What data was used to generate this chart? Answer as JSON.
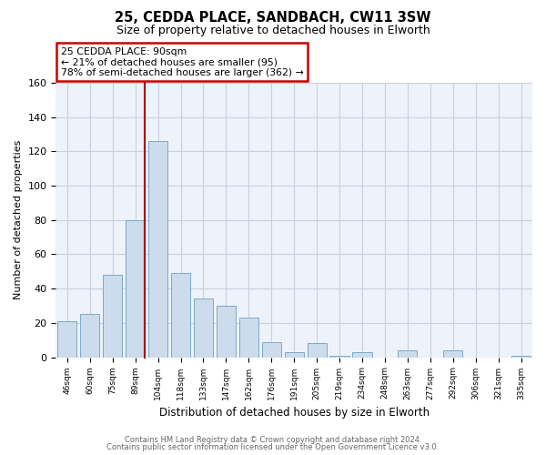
{
  "title": "25, CEDDA PLACE, SANDBACH, CW11 3SW",
  "subtitle": "Size of property relative to detached houses in Elworth",
  "xlabel": "Distribution of detached houses by size in Elworth",
  "ylabel": "Number of detached properties",
  "categories": [
    "46sqm",
    "60sqm",
    "75sqm",
    "89sqm",
    "104sqm",
    "118sqm",
    "133sqm",
    "147sqm",
    "162sqm",
    "176sqm",
    "191sqm",
    "205sqm",
    "219sqm",
    "234sqm",
    "248sqm",
    "263sqm",
    "277sqm",
    "292sqm",
    "306sqm",
    "321sqm",
    "335sqm"
  ],
  "values": [
    21,
    25,
    48,
    80,
    126,
    49,
    34,
    30,
    23,
    9,
    3,
    8,
    1,
    3,
    0,
    4,
    0,
    4,
    0,
    0,
    1
  ],
  "bar_color": "#ccdcec",
  "bar_edge_color": "#7aaac8",
  "annotation_title": "25 CEDDA PLACE: 90sqm",
  "annotation_line1": "← 21% of detached houses are smaller (95)",
  "annotation_line2": "78% of semi-detached houses are larger (362) →",
  "annotation_box_color": "#ffffff",
  "annotation_box_edge": "#cc0000",
  "property_line_color": "#aa0000",
  "ylim": [
    0,
    160
  ],
  "yticks": [
    0,
    20,
    40,
    60,
    80,
    100,
    120,
    140,
    160
  ],
  "footer1": "Contains HM Land Registry data © Crown copyright and database right 2024.",
  "footer2": "Contains public sector information licensed under the Open Government Licence v3.0.",
  "background_color": "#ffffff",
  "plot_bg_color": "#eef2fa",
  "grid_color": "#c8d0e0"
}
